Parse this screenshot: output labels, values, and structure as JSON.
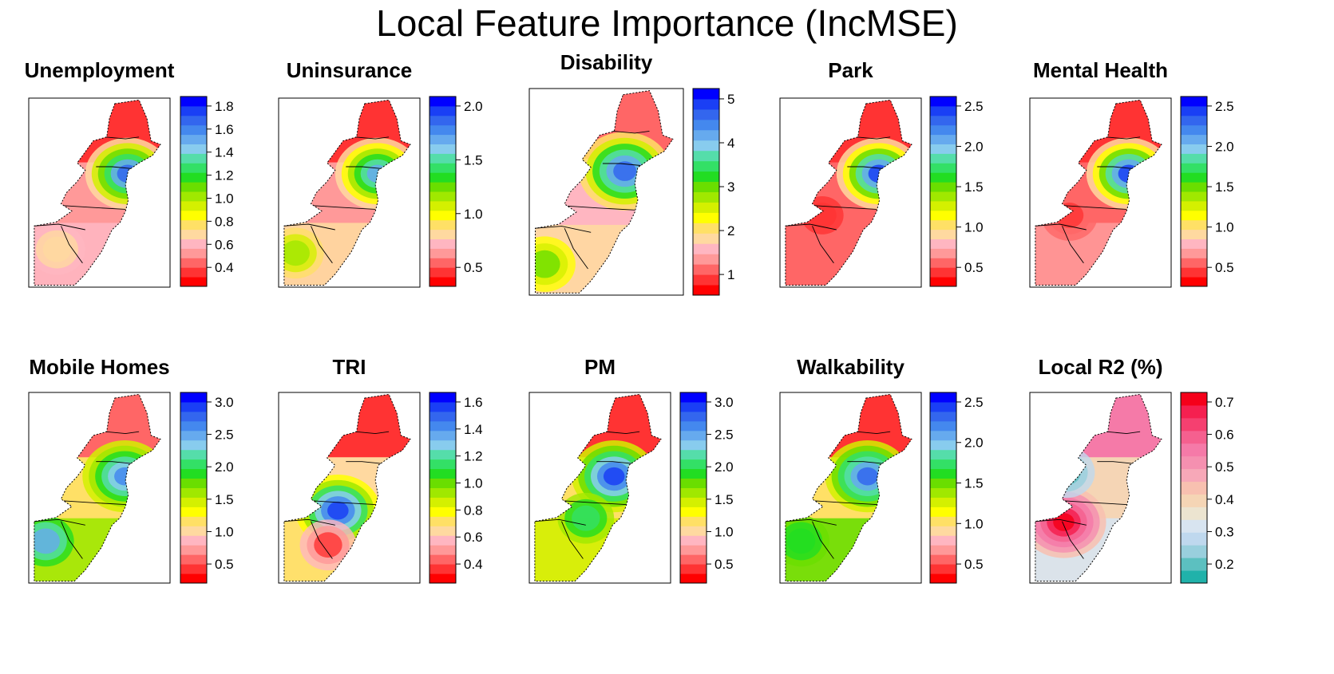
{
  "title": "Local Feature Importance (IncMSE)",
  "scale_colors": [
    "#ff0000",
    "#ff3333",
    "#ff6666",
    "#ff9999",
    "#ffb6c1",
    "#ffd9a0",
    "#ffe066",
    "#ffff00",
    "#d4f000",
    "#a0e800",
    "#6ade00",
    "#22dd22",
    "#33e066",
    "#55ddaa",
    "#88ccee",
    "#66aaee",
    "#4488ee",
    "#3366ee",
    "#1a3ff5",
    "#0000ff"
  ],
  "r2_colors": [
    "#20b2aa",
    "#5cc0c0",
    "#99cfdd",
    "#bfd8ee",
    "#d8e4f0",
    "#ece4d0",
    "#f5d5b5",
    "#f8c0b0",
    "#f7a8b8",
    "#f590b0",
    "#f57aa8",
    "#f5608f",
    "#f54070",
    "#f52050",
    "#f5001a"
  ],
  "panels": [
    {
      "title": "Unemployment",
      "ticks": [
        "1.8",
        "1.6",
        "1.4",
        "1.2",
        "1.0",
        "0.8",
        "0.6",
        "0.4"
      ],
      "colors": "scale"
    },
    {
      "title": "Uninsurance",
      "ticks": [
        "2.0",
        "1.5",
        "1.0",
        "0.5"
      ],
      "colors": "scale"
    },
    {
      "title": "Disability",
      "ticks": [
        "5",
        "4",
        "3",
        "2",
        "1"
      ],
      "colors": "scale"
    },
    {
      "title": "Park",
      "ticks": [
        "2.5",
        "2.0",
        "1.5",
        "1.0",
        "0.5"
      ],
      "colors": "scale"
    },
    {
      "title": "Mental Health",
      "ticks": [
        "2.5",
        "2.0",
        "1.5",
        "1.0",
        "0.5"
      ],
      "colors": "scale"
    },
    {
      "title": "Mobile Homes",
      "ticks": [
        "3.0",
        "2.5",
        "2.0",
        "1.5",
        "1.0",
        "0.5"
      ],
      "colors": "scale"
    },
    {
      "title": "TRI",
      "ticks": [
        "1.6",
        "1.4",
        "1.2",
        "1.0",
        "0.8",
        "0.6",
        "0.4"
      ],
      "colors": "scale"
    },
    {
      "title": "PM",
      "ticks": [
        "3.0",
        "2.5",
        "2.0",
        "1.5",
        "1.0",
        "0.5"
      ],
      "colors": "scale"
    },
    {
      "title": "Walkability",
      "ticks": [
        "2.5",
        "2.0",
        "1.5",
        "1.0",
        "0.5"
      ],
      "colors": "scale"
    },
    {
      "title": "Local R2 (%)",
      "ticks": [
        "0.7",
        "0.6",
        "0.5",
        "0.4",
        "0.3",
        "0.2"
      ],
      "colors": "r2"
    }
  ]
}
